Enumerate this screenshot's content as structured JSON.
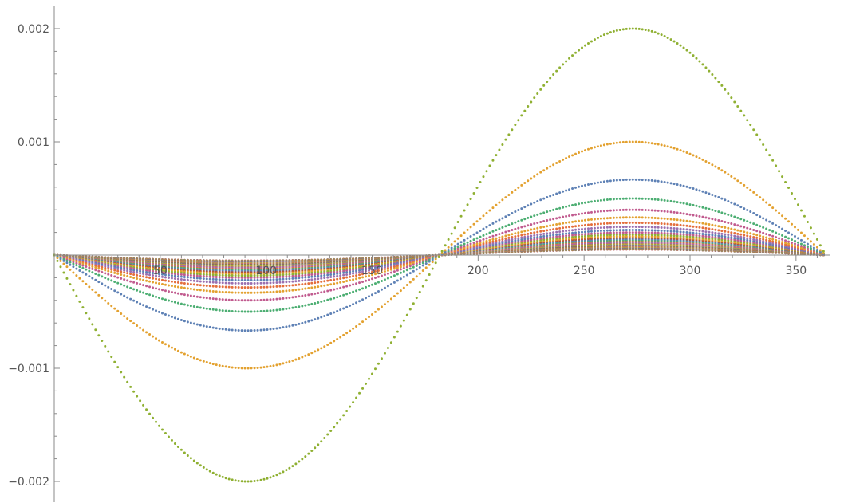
{
  "chart_data": {
    "type": "scatter",
    "title": "",
    "xlabel": "",
    "ylabel": "",
    "xlim": [
      0,
      369
    ],
    "ylim": [
      -0.0021,
      0.0021
    ],
    "grid": false,
    "legend": "none",
    "x_ticks": [
      {
        "value": 50,
        "label": "50"
      },
      {
        "value": 100,
        "label": "100"
      },
      {
        "value": 150,
        "label": "150"
      },
      {
        "value": 200,
        "label": "200"
      },
      {
        "value": 250,
        "label": "250"
      },
      {
        "value": 300,
        "label": "300"
      },
      {
        "value": 350,
        "label": "350"
      }
    ],
    "y_ticks": [
      {
        "value": 0.002,
        "label": "0.002"
      },
      {
        "value": 0.001,
        "label": "0.001"
      },
      {
        "value": -0.001,
        "label": "−0.001"
      },
      {
        "value": -0.002,
        "label": "−0.002"
      }
    ],
    "curve_shape": "amplitude * -sin(2*pi*x/364)",
    "x_range": [
      0,
      364
    ],
    "x_step": 1.5,
    "series": [
      {
        "amplitude": 0.002,
        "color": "#8fb032"
      },
      {
        "amplitude": 0.001,
        "color": "#e3a12f"
      },
      {
        "amplitude": 0.000667,
        "color": "#5e81b5"
      },
      {
        "amplitude": 0.0005,
        "color": "#4cae72"
      },
      {
        "amplitude": 0.0004,
        "color": "#c15b8f"
      },
      {
        "amplitude": 0.000333,
        "color": "#e3a12f"
      },
      {
        "amplitude": 0.000286,
        "color": "#e46e3c"
      },
      {
        "amplitude": 0.00025,
        "color": "#9b6fb0"
      },
      {
        "amplitude": 0.000222,
        "color": "#5e81b5"
      },
      {
        "amplitude": 0.0002,
        "color": "#c15b8f"
      },
      {
        "amplitude": 0.000182,
        "color": "#8fb032"
      },
      {
        "amplitude": 0.000167,
        "color": "#e3a12f"
      },
      {
        "amplitude": 0.000154,
        "color": "#b55434"
      },
      {
        "amplitude": 0.000143,
        "color": "#5e81b5"
      },
      {
        "amplitude": 0.000133,
        "color": "#4cae72"
      },
      {
        "amplitude": 0.000125,
        "color": "#e46e3c"
      },
      {
        "amplitude": 0.000118,
        "color": "#9b6fb0"
      },
      {
        "amplitude": 0.000111,
        "color": "#c15b8f"
      },
      {
        "amplitude": 0.000105,
        "color": "#8fb032"
      },
      {
        "amplitude": 0.0001,
        "color": "#e3a12f"
      },
      {
        "amplitude": 9.52e-05,
        "color": "#5e81b5"
      },
      {
        "amplitude": 9.09e-05,
        "color": "#b55434"
      },
      {
        "amplitude": 8.7e-05,
        "color": "#4cae72"
      },
      {
        "amplitude": 8.33e-05,
        "color": "#e46e3c"
      },
      {
        "amplitude": 8e-05,
        "color": "#c15b8f"
      },
      {
        "amplitude": 7.69e-05,
        "color": "#8fb032"
      },
      {
        "amplitude": 7.41e-05,
        "color": "#e3a12f"
      },
      {
        "amplitude": 7.14e-05,
        "color": "#9b6fb0"
      },
      {
        "amplitude": 6.9e-05,
        "color": "#5e81b5"
      },
      {
        "amplitude": 6.67e-05,
        "color": "#b55434"
      },
      {
        "amplitude": 6.45e-05,
        "color": "#4cae72"
      },
      {
        "amplitude": 6.25e-05,
        "color": "#e46e3c"
      },
      {
        "amplitude": 6.06e-05,
        "color": "#c15b8f"
      },
      {
        "amplitude": 5.88e-05,
        "color": "#8fb032"
      },
      {
        "amplitude": 5.71e-05,
        "color": "#e3a12f"
      },
      {
        "amplitude": 5.56e-05,
        "color": "#5e81b5"
      },
      {
        "amplitude": 5.41e-05,
        "color": "#b55434"
      },
      {
        "amplitude": 5.26e-05,
        "color": "#4cae72"
      },
      {
        "amplitude": 5.13e-05,
        "color": "#e46e3c"
      },
      {
        "amplitude": 5e-05,
        "color": "#c15b8f"
      }
    ]
  }
}
